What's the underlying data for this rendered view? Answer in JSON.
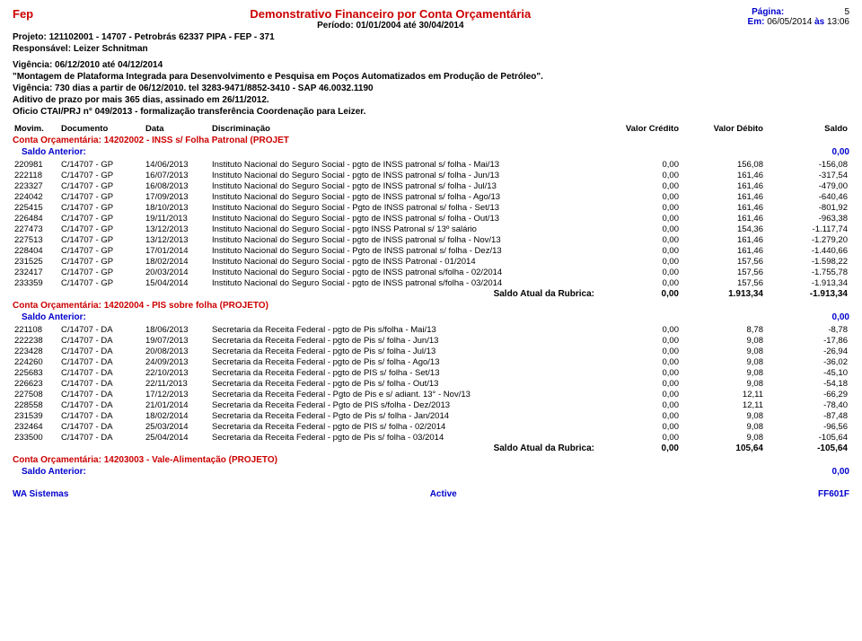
{
  "header": {
    "org": "Fep",
    "title": "Demonstrativo Financeiro  por Conta Orçamentária",
    "period_label": "Período:",
    "period": "01/01/2004 até 30/04/2014",
    "page_label": "Página:",
    "page_num": "5",
    "issued_label": "Em:",
    "issued_date": "06/05/2014",
    "issued_at": "às",
    "issued_time": "13:06",
    "project_label": "Projeto:",
    "project": "121102001 - 14707 - Petrobrás 62337 PIPA - FEP - 371",
    "resp_label": "Responsável:",
    "resp": "Leizer Schnitman"
  },
  "notes": [
    "Vigência: 06/12/2010 até 04/12/2014",
    "\"Montagem de Plataforma Integrada para Desenvolvimento e Pesquisa em Poços Automatizados em Produção de Petróleo\".",
    "Vigência: 730 dias a partir de 06/12/2010. tel 3283-9471/8852-3410 - SAP 46.0032.1190",
    "Aditivo de prazo por mais 365 dias, assinado em 26/11/2012.",
    "Oficio CTAI/PRJ n° 049/2013 - formalização transferência Coordenação para Leizer."
  ],
  "columns": {
    "mov": "Movim.",
    "doc": "Documento",
    "data": "Data",
    "disc": "Discriminação",
    "cred": "Valor Crédito",
    "deb": "Valor Débito",
    "sal": "Saldo"
  },
  "saldo_anterior_label": "Saldo Anterior:",
  "rubrica_label": "Saldo Atual da Rubrica:",
  "accounts": [
    {
      "title": "Conta Orçamentária: 14202002 - INSS s/ Folha Patronal (PROJET",
      "saldo_anterior": "0,00",
      "rows": [
        {
          "m": "220981",
          "doc": "C/14707 - GP",
          "dt": "14/06/2013",
          "d": "Instituto Nacional do Seguro Social - pgto de INSS patronal s/ folha - Mai/13",
          "c": "0,00",
          "deb": "156,08",
          "s": "-156,08"
        },
        {
          "m": "222118",
          "doc": "C/14707 - GP",
          "dt": "16/07/2013",
          "d": "Instituto Nacional do Seguro Social - pgto de INSS patronal s/ folha - Jun/13",
          "c": "0,00",
          "deb": "161,46",
          "s": "-317,54"
        },
        {
          "m": "223327",
          "doc": "C/14707 - GP",
          "dt": "16/08/2013",
          "d": "Instituto Nacional do Seguro Social - pgto de INSS patronal s/ folha - Jul/13",
          "c": "0,00",
          "deb": "161,46",
          "s": "-479,00"
        },
        {
          "m": "224042",
          "doc": "C/14707 - GP",
          "dt": "17/09/2013",
          "d": "Instituto Nacional do Seguro Social - pgto de INSS patronal s/ folha - Ago/13",
          "c": "0,00",
          "deb": "161,46",
          "s": "-640,46"
        },
        {
          "m": "225415",
          "doc": "C/14707 - GP",
          "dt": "18/10/2013",
          "d": "Instituto Nacional do Seguro Social - Pgto de INSS patronal s/ folha - Set/13",
          "c": "0,00",
          "deb": "161,46",
          "s": "-801,92"
        },
        {
          "m": "226484",
          "doc": "C/14707 - GP",
          "dt": "19/11/2013",
          "d": "Instituto Nacional do Seguro Social - pgto de INSS patronal s/ folha - Out/13",
          "c": "0,00",
          "deb": "161,46",
          "s": "-963,38"
        },
        {
          "m": "227473",
          "doc": "C/14707 - GP",
          "dt": "13/12/2013",
          "d": "Instituto Nacional do Seguro Social - pgto INSS Patronal s/ 13º salário",
          "c": "0,00",
          "deb": "154,36",
          "s": "-1.117,74"
        },
        {
          "m": "227513",
          "doc": "C/14707 - GP",
          "dt": "13/12/2013",
          "d": "Instituto Nacional do Seguro Social - pgto de INSS patronal s/ folha - Nov/13",
          "c": "0,00",
          "deb": "161,46",
          "s": "-1.279,20"
        },
        {
          "m": "228404",
          "doc": "C/14707 - GP",
          "dt": "17/01/2014",
          "d": "Instituto Nacional do Seguro Social - Pgto de INSS patronal s/ folha - Dez/13",
          "c": "0,00",
          "deb": "161,46",
          "s": "-1.440,66"
        },
        {
          "m": "231525",
          "doc": "C/14707 - GP",
          "dt": "18/02/2014",
          "d": "Instituto Nacional do Seguro Social - pgto de INSS Patronal - 01/2014",
          "c": "0,00",
          "deb": "157,56",
          "s": "-1.598,22"
        },
        {
          "m": "232417",
          "doc": "C/14707 - GP",
          "dt": "20/03/2014",
          "d": "Instituto Nacional do Seguro Social - pgto de INSS patronal s/folha - 02/2014",
          "c": "0,00",
          "deb": "157,56",
          "s": "-1.755,78"
        },
        {
          "m": "233359",
          "doc": "C/14707 - GP",
          "dt": "15/04/2014",
          "d": "Instituto Nacional do Seguro Social - pgto de INSS patronal s/folha - 03/2014",
          "c": "0,00",
          "deb": "157,56",
          "s": "-1.913,34"
        }
      ],
      "rubrica": {
        "c": "0,00",
        "d": "1.913,34",
        "s": "-1.913,34"
      }
    },
    {
      "title": "Conta Orçamentária: 14202004 - PIS sobre folha (PROJETO)",
      "saldo_anterior": "0,00",
      "rows": [
        {
          "m": "221108",
          "doc": "C/14707 - DA",
          "dt": "18/06/2013",
          "d": "Secretaria da Receita Federal - pgto de Pis s/folha - Mai/13",
          "c": "0,00",
          "deb": "8,78",
          "s": "-8,78"
        },
        {
          "m": "222238",
          "doc": "C/14707 - DA",
          "dt": "19/07/2013",
          "d": "Secretaria da Receita Federal - pgto de Pis s/ folha - Jun/13",
          "c": "0,00",
          "deb": "9,08",
          "s": "-17,86"
        },
        {
          "m": "223428",
          "doc": "C/14707 - DA",
          "dt": "20/08/2013",
          "d": "Secretaria da Receita Federal - pgto de Pis s/ folha - Jul/13",
          "c": "0,00",
          "deb": "9,08",
          "s": "-26,94"
        },
        {
          "m": "224260",
          "doc": "C/14707 - DA",
          "dt": "24/09/2013",
          "d": "Secretaria da Receita Federal - pgto de Pis s/ folha - Ago/13",
          "c": "0,00",
          "deb": "9,08",
          "s": "-36,02"
        },
        {
          "m": "225683",
          "doc": "C/14707 - DA",
          "dt": "22/10/2013",
          "d": "Secretaria da Receita Federal - pgto de PIS s/ folha - Set/13",
          "c": "0,00",
          "deb": "9,08",
          "s": "-45,10"
        },
        {
          "m": "226623",
          "doc": "C/14707 - DA",
          "dt": "22/11/2013",
          "d": "Secretaria da Receita Federal - pgto de Pis s/ folha - Out/13",
          "c": "0,00",
          "deb": "9,08",
          "s": "-54,18"
        },
        {
          "m": "227508",
          "doc": "C/14707 - DA",
          "dt": "17/12/2013",
          "d": "Secretaria da Receita Federal - Pgto de Pis e s/ adiant. 13° - Nov/13",
          "c": "0,00",
          "deb": "12,11",
          "s": "-66,29"
        },
        {
          "m": "228558",
          "doc": "C/14707 - DA",
          "dt": "21/01/2014",
          "d": "Secretaria da Receita Federal - Pgto de PIS s/folha - Dez/2013",
          "c": "0,00",
          "deb": "12,11",
          "s": "-78,40"
        },
        {
          "m": "231539",
          "doc": "C/14707 - DA",
          "dt": "18/02/2014",
          "d": "Secretaria da Receita Federal - Pgto de Pis s/ folha - Jan/2014",
          "c": "0,00",
          "deb": "9,08",
          "s": "-87,48"
        },
        {
          "m": "232464",
          "doc": "C/14707 - DA",
          "dt": "25/03/2014",
          "d": "Secretaria da Receita Federal - pgto de PIS s/ folha - 02/2014",
          "c": "0,00",
          "deb": "9,08",
          "s": "-96,56"
        },
        {
          "m": "233500",
          "doc": "C/14707 - DA",
          "dt": "25/04/2014",
          "d": "Secretaria da Receita Federal - pgto de Pis s/ folha - 03/2014",
          "c": "0,00",
          "deb": "9,08",
          "s": "-105,64"
        }
      ],
      "rubrica": {
        "c": "0,00",
        "d": "105,64",
        "s": "-105,64"
      }
    },
    {
      "title": "Conta Orçamentária: 14203003 - Vale-Alimentação (PROJETO)",
      "saldo_anterior": "0,00",
      "rows": [],
      "rubrica": null
    }
  ],
  "footer": {
    "left": "WA Sistemas",
    "center": "Active",
    "right": "FF601F"
  },
  "colors": {
    "red": "#cc0000",
    "blue": "#0000cc",
    "black": "#000000",
    "bg": "#ffffff"
  }
}
